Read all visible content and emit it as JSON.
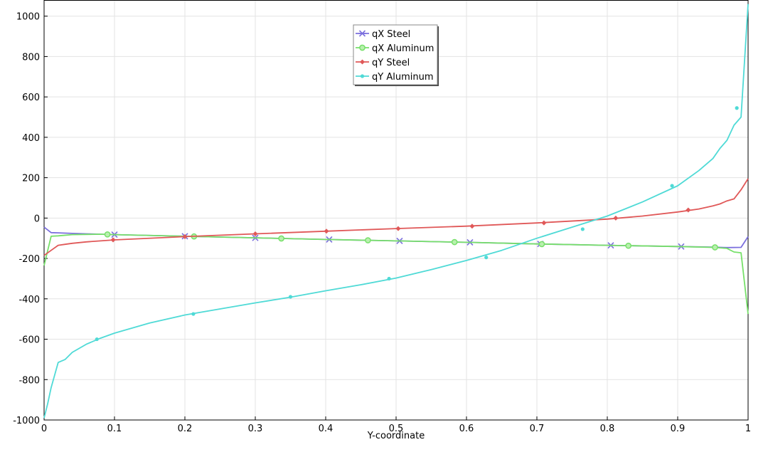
{
  "chart_data": {
    "type": "line",
    "title": "",
    "xlabel": "Y-coordinate",
    "ylabel": "",
    "xlim": [
      0,
      1
    ],
    "ylim": [
      -1000,
      1080
    ],
    "grid": true,
    "legend_position": "top-center",
    "xticks": [
      0,
      0.1,
      0.2,
      0.3,
      0.4,
      0.5,
      0.6,
      0.7,
      0.8,
      0.9,
      1
    ],
    "xtick_labels": [
      "0",
      "0.1",
      "0.2",
      "0.3",
      "0.4",
      "0.5",
      "0.6",
      "0.7",
      "0.8",
      "0.9",
      "1"
    ],
    "yticks": [
      -1000,
      -800,
      -600,
      -400,
      -200,
      0,
      200,
      400,
      600,
      800,
      1000
    ],
    "ytick_labels": [
      "-1000",
      "-800",
      "-600",
      "-400",
      "-200",
      "0",
      "200",
      "400",
      "600",
      "800",
      "1000"
    ],
    "series": [
      {
        "name": "qX Steel",
        "color": "#7b6fdd",
        "marker": "asterisk",
        "x": [
          0,
          0.01,
          0.02,
          0.04,
          0.06,
          0.1,
          0.2,
          0.3,
          0.4,
          0.5,
          0.6,
          0.7,
          0.8,
          0.9,
          0.95,
          0.97,
          0.99,
          1
        ],
        "y": [
          -45,
          -72,
          -73,
          -76,
          -78,
          -82,
          -90,
          -98,
          -106,
          -113,
          -120,
          -128,
          -135,
          -141,
          -144,
          -146,
          -145,
          -92
        ],
        "markers_x": [
          0.1,
          0.2,
          0.3,
          0.405,
          0.505,
          0.605,
          0.705,
          0.805,
          0.905
        ],
        "markers_y": [
          -82,
          -90,
          -98,
          -106,
          -113,
          -120,
          -128,
          -135,
          -141
        ]
      },
      {
        "name": "qX Aluminum",
        "color": "#77e06a",
        "marker": "circle",
        "x": [
          0,
          0.01,
          0.02,
          0.04,
          0.08,
          0.1,
          0.2,
          0.3,
          0.4,
          0.5,
          0.6,
          0.7,
          0.8,
          0.9,
          0.95,
          0.97,
          0.98,
          0.99,
          1
        ],
        "y": [
          -235,
          -90,
          -88,
          -82,
          -80,
          -82,
          -90,
          -98,
          -106,
          -113,
          -120,
          -128,
          -135,
          -141,
          -145,
          -150,
          -168,
          -172,
          -475
        ],
        "markers_x": [
          0.09,
          0.213,
          0.337,
          0.46,
          0.583,
          0.707,
          0.83,
          0.953
        ],
        "markers_y": [
          -81,
          -91,
          -101,
          -110,
          -119,
          -129,
          -137,
          -145
        ]
      },
      {
        "name": "qY Steel",
        "color": "#e05858",
        "marker": "diamond",
        "x": [
          0,
          0.01,
          0.02,
          0.03,
          0.04,
          0.06,
          0.1,
          0.2,
          0.3,
          0.4,
          0.5,
          0.6,
          0.7,
          0.8,
          0.85,
          0.9,
          0.93,
          0.95,
          0.96,
          0.97,
          0.98,
          0.99,
          1
        ],
        "y": [
          -185,
          -160,
          -135,
          -130,
          -125,
          -118,
          -108,
          -92,
          -78,
          -65,
          -52,
          -40,
          -24,
          -5,
          10,
          30,
          45,
          60,
          70,
          85,
          95,
          140,
          195
        ],
        "markers_x": [
          0.098,
          0.2,
          0.3,
          0.401,
          0.503,
          0.608,
          0.71,
          0.812,
          0.915
        ],
        "markers_y": [
          -108,
          -92,
          -78,
          -65,
          -52,
          -40,
          -24,
          0,
          40
        ]
      },
      {
        "name": "qY Aluminum",
        "color": "#4fdad6",
        "marker": "dot",
        "x": [
          0,
          0.005,
          0.01,
          0.02,
          0.03,
          0.04,
          0.06,
          0.08,
          0.1,
          0.15,
          0.2,
          0.25,
          0.3,
          0.35,
          0.4,
          0.45,
          0.5,
          0.55,
          0.6,
          0.65,
          0.7,
          0.75,
          0.8,
          0.85,
          0.9,
          0.93,
          0.95,
          0.96,
          0.97,
          0.98,
          0.99,
          1
        ],
        "y": [
          -990,
          -920,
          -840,
          -715,
          -700,
          -665,
          -625,
          -595,
          -570,
          -520,
          -480,
          -450,
          -420,
          -392,
          -360,
          -330,
          -297,
          -255,
          -210,
          -160,
          -100,
          -45,
          10,
          80,
          160,
          235,
          295,
          345,
          385,
          460,
          500,
          1060
        ],
        "markers_x": [
          0.075,
          0.212,
          0.35,
          0.49,
          0.628,
          0.765,
          0.892,
          0.984
        ],
        "markers_y": [
          -600,
          -475,
          -390,
          -300,
          -195,
          -55,
          160,
          545
        ]
      }
    ]
  }
}
